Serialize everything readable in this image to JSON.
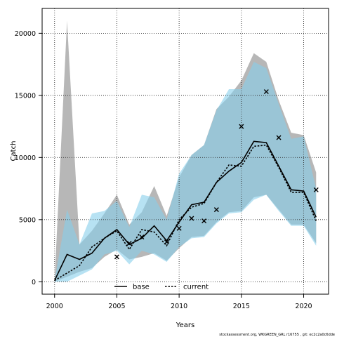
{
  "chart_data": {
    "type": "line",
    "xlabel": "Years",
    "ylabel": "Catch",
    "xlim": [
      1999,
      2022
    ],
    "ylim": [
      -1000,
      22000
    ],
    "x_ticks": [
      2000,
      2005,
      2010,
      2015,
      2020
    ],
    "y_ticks": [
      0,
      5000,
      10000,
      15000,
      20000
    ],
    "grid": true,
    "legend_position": "bottom-center",
    "x": [
      2000,
      2001,
      2002,
      2003,
      2004,
      2005,
      2006,
      2007,
      2008,
      2009,
      2010,
      2011,
      2012,
      2013,
      2014,
      2015,
      2016,
      2017,
      2018,
      2019,
      2020,
      2021
    ],
    "series": [
      {
        "name": "base",
        "color": "#000000",
        "values": [
          100,
          2200,
          1800,
          2300,
          3500,
          4200,
          3000,
          3500,
          4500,
          3300,
          4800,
          6200,
          6400,
          8000,
          8900,
          9600,
          11300,
          11200,
          9300,
          7400,
          7300,
          5200
        ],
        "band_low": [
          0,
          400,
          800,
          1100,
          2000,
          2600,
          1800,
          2000,
          2300,
          1700,
          2700,
          3600,
          3700,
          4800,
          5600,
          5700,
          6800,
          7000,
          5800,
          4600,
          4600,
          3100
        ],
        "band_high": [
          100,
          21000,
          3000,
          4100,
          5500,
          7000,
          4600,
          5600,
          7700,
          5300,
          8400,
          10200,
          11000,
          13900,
          14900,
          16200,
          18400,
          17700,
          14600,
          12000,
          11800,
          8800
        ],
        "band_color": "#aaaaaa"
      },
      {
        "name": "current",
        "color": "#000000",
        "values": [
          100,
          700,
          1300,
          2800,
          3500,
          4100,
          2600,
          4200,
          4000,
          2900,
          5000,
          6000,
          6300,
          8000,
          9400,
          9300,
          10900,
          11000,
          9200,
          7200,
          7200,
          4900
        ],
        "band_low": [
          0,
          0,
          500,
          1000,
          2200,
          2500,
          1400,
          2500,
          2200,
          1600,
          2800,
          3500,
          3600,
          4700,
          5500,
          5600,
          6600,
          7000,
          5700,
          4500,
          4500,
          2900
        ],
        "band_high": [
          100,
          5800,
          3000,
          5500,
          5700,
          6500,
          4400,
          7000,
          6800,
          5000,
          8700,
          10200,
          11000,
          13800,
          15500,
          15500,
          17700,
          17200,
          14300,
          11500,
          11700,
          7500
        ],
        "band_color": "#87ceeb"
      },
      {
        "name": "",
        "style": "points",
        "marker": "x",
        "color": "#000000",
        "x": [
          2005,
          2006,
          2007,
          2009,
          2010,
          2011,
          2012,
          2013,
          2015,
          2017,
          2018,
          2021
        ],
        "values": [
          2000,
          3100,
          3600,
          3200,
          4300,
          5100,
          4900,
          5800,
          12500,
          15300,
          11600,
          7400
        ]
      }
    ]
  },
  "footer": {
    "text": "stockassessment.org, WKGREEN_GRL r16755 , git: ec2c2a0c6dde"
  }
}
